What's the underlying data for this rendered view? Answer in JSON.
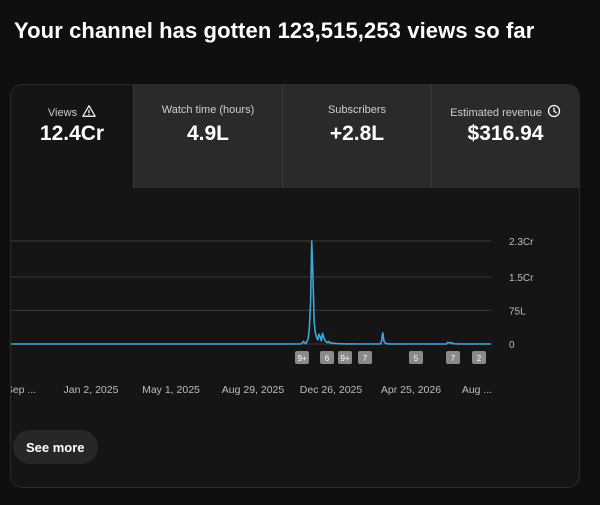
{
  "headline": "Your channel has gotten 123,515,253 views so far",
  "tabs": [
    {
      "label": "Views",
      "value": "12.4Cr",
      "icon": "warning-triangle-icon"
    },
    {
      "label": "Watch time (hours)",
      "value": "4.9L"
    },
    {
      "label": "Subscribers",
      "value": "+2.8L"
    },
    {
      "label": "Estimated revenue",
      "value": "$316.94",
      "icon": "clock-icon"
    }
  ],
  "see_more_label": "See more",
  "colors": {
    "line": "#3ea6d8",
    "grid": "#3a3a3a",
    "badge": "#8a8a8a"
  },
  "chart_data": {
    "type": "line",
    "x_tick_labels": [
      "Sep ...",
      "Jan 2, 2025",
      "May 1, 2025",
      "Aug 29, 2025",
      "Dec 26, 2025",
      "Apr 25, 2026",
      "Aug ..."
    ],
    "y_tick_labels": [
      "2.3Cr",
      "1.5Cr",
      "75L",
      "0"
    ],
    "y_tick_values": [
      23000000,
      15000000,
      7500000,
      0
    ],
    "ylim": [
      0,
      23000000
    ],
    "grid": true,
    "markers": [
      "9+",
      "6",
      "9+",
      "7",
      "5",
      "7",
      "2"
    ],
    "series": [
      {
        "values": [
          0,
          0,
          0,
          0,
          0,
          0,
          0,
          0,
          0,
          0,
          0,
          0,
          0,
          0,
          0,
          0,
          0,
          0,
          0,
          0,
          0,
          0,
          0,
          0,
          0,
          0,
          0,
          0,
          0,
          0,
          0,
          0,
          0,
          0,
          0,
          0,
          0,
          0,
          0,
          0,
          0,
          0,
          0,
          0,
          0,
          0,
          0,
          0,
          0,
          0,
          0,
          0,
          0,
          0,
          0,
          0,
          0,
          0,
          0,
          0,
          0,
          0,
          0,
          0,
          0,
          0,
          0,
          0,
          0,
          0,
          0,
          0,
          0,
          0,
          0,
          0,
          0,
          0,
          0,
          0,
          0,
          0,
          0,
          0,
          0,
          0,
          0,
          0,
          0,
          0,
          0,
          0,
          0,
          0,
          0,
          0,
          0,
          0,
          0,
          0,
          0,
          0,
          0,
          0,
          0,
          0,
          0,
          0,
          0,
          0,
          0,
          0,
          0,
          0,
          0,
          0,
          0,
          0,
          0,
          0,
          0,
          0,
          0,
          0,
          0,
          0,
          0,
          0,
          0,
          0,
          0,
          0,
          0,
          0,
          0,
          0,
          0,
          0,
          0,
          0,
          0,
          0,
          0,
          0,
          0,
          0,
          0,
          0,
          0,
          0,
          0,
          0,
          0,
          0,
          0,
          0,
          0,
          0,
          0,
          0,
          0,
          0,
          0,
          0,
          0,
          0,
          0,
          0,
          0,
          0,
          0,
          0,
          0,
          0,
          0,
          0,
          0,
          0,
          0,
          0,
          0,
          0,
          0,
          0,
          0,
          0,
          0,
          0,
          0,
          0,
          0,
          0,
          0,
          0,
          0,
          0,
          0,
          0,
          0,
          0,
          0,
          0,
          0,
          0,
          0,
          0,
          0,
          0,
          0,
          0,
          0,
          0,
          0,
          0,
          0,
          0,
          0,
          0,
          0,
          0,
          0,
          0,
          0,
          0,
          0,
          0,
          0,
          0,
          0,
          0,
          0,
          0,
          0,
          0,
          0,
          0,
          0,
          0,
          0,
          0,
          0,
          0,
          200000,
          600000,
          300000,
          100000,
          500000,
          1200000,
          3500000,
          9000000,
          23000000,
          15000000,
          5000000,
          2500000,
          1500000,
          900000,
          2200000,
          1600000,
          700000,
          2400000,
          1400000,
          800000,
          500000,
          300000,
          600000,
          200000,
          350000,
          150000,
          100000,
          200000,
          80000,
          60000,
          120000,
          50000,
          40000,
          30000,
          60000,
          20000,
          15000,
          30000,
          10000,
          10000,
          20000,
          10000,
          8000,
          5000,
          10000,
          5000,
          3000,
          5000,
          3000,
          2000,
          3000,
          2000,
          1000,
          2000,
          1000,
          1000,
          1000,
          1000,
          1000,
          1000,
          1000,
          1000,
          1000,
          1000,
          1000,
          1000,
          600000,
          2500000,
          700000,
          200000,
          100000,
          50000,
          20000,
          10000,
          5000,
          3000,
          2000,
          2000,
          1000,
          1000,
          1000,
          1000,
          1000,
          1000,
          1000,
          1000,
          1000,
          1000,
          1000,
          1000,
          1000,
          1000,
          1000,
          1000,
          1000,
          1000,
          1000,
          1000,
          1000,
          1000,
          1000,
          1000,
          1000,
          1000,
          1000,
          1000,
          1000,
          1000,
          1000,
          1000,
          1000,
          1000,
          1000,
          1000,
          1000,
          1000,
          1000,
          1000,
          1000,
          1000,
          1000,
          400000,
          300000,
          200000,
          350000,
          100000,
          80000,
          50000,
          30000,
          20000,
          10000,
          5000,
          3000,
          2000,
          1000,
          1000,
          1000,
          1000,
          1000,
          1000,
          1000,
          1000,
          1000,
          1000,
          1000,
          1000,
          1000,
          1000,
          1000,
          1000,
          1000,
          1000,
          1000,
          1000,
          1000,
          1000,
          1000,
          1000
        ]
      }
    ]
  }
}
